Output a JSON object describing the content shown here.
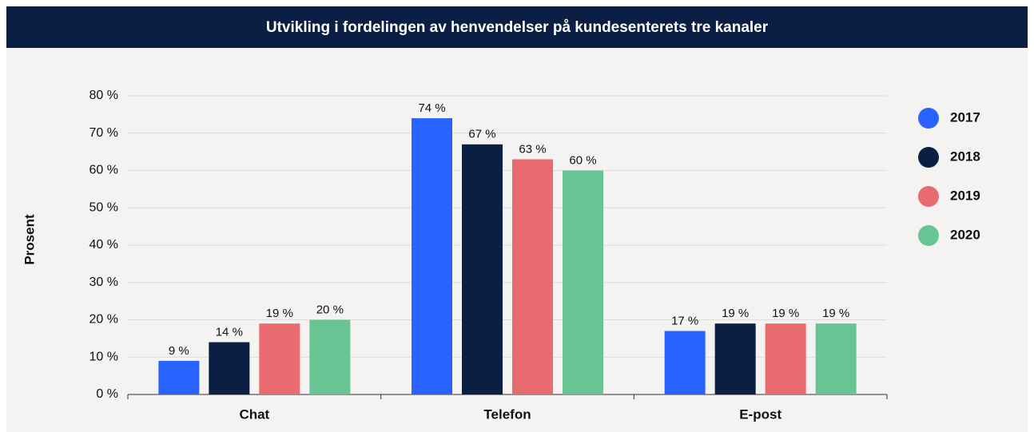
{
  "chart_data": {
    "type": "bar",
    "title": "Utvikling i fordelingen av henvendelser på kundesenterets tre kanaler",
    "y_label": "Prosent",
    "categories": [
      "Chat",
      "Telefon",
      "E-post"
    ],
    "series": [
      {
        "name": "2017",
        "color": "#2962ff",
        "values": [
          9,
          74,
          17
        ],
        "value_labels": [
          "9 %",
          "74 %",
          "17 %"
        ]
      },
      {
        "name": "2018",
        "color": "#0b1f45",
        "values": [
          14,
          67,
          19
        ],
        "value_labels": [
          "14 %",
          "67 %",
          "19 %"
        ]
      },
      {
        "name": "2019",
        "color": "#e96b6f",
        "values": [
          19,
          63,
          19
        ],
        "value_labels": [
          "19 %",
          "63 %",
          "19 %"
        ]
      },
      {
        "name": "2020",
        "color": "#66c592",
        "values": [
          20,
          60,
          19
        ],
        "value_labels": [
          "20 %",
          "60 %",
          "19 %"
        ]
      }
    ],
    "ylim": [
      0,
      80
    ],
    "yticks": [
      {
        "value": 0,
        "label": "0 %"
      },
      {
        "value": 10,
        "label": "10 %"
      },
      {
        "value": 20,
        "label": "20 %"
      },
      {
        "value": 30,
        "label": "30 %"
      },
      {
        "value": 40,
        "label": "40 %"
      },
      {
        "value": 50,
        "label": "50 %"
      },
      {
        "value": 60,
        "label": "60 %"
      },
      {
        "value": 70,
        "label": "70 %"
      },
      {
        "value": 80,
        "label": "80 %"
      }
    ],
    "grid": true,
    "legend": "right"
  }
}
